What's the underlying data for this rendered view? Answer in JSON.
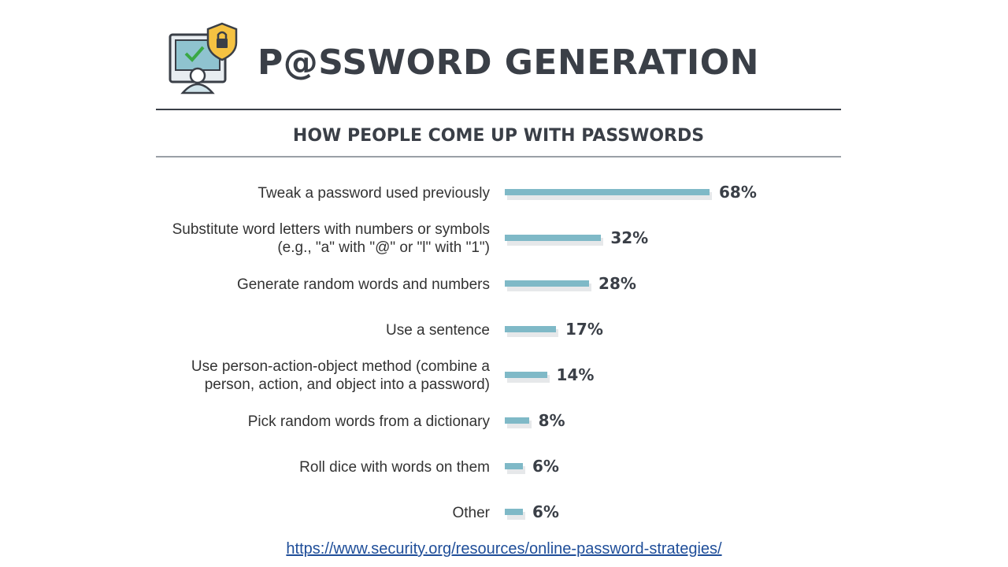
{
  "header": {
    "title": "P@SSWORD GENERATION",
    "subtitle": "HOW PEOPLE COME UP WITH PASSWORDS"
  },
  "colors": {
    "bar": "#7fb9c7",
    "text": "#3a3f47",
    "link": "#1f4e99"
  },
  "chart_data": {
    "type": "bar",
    "orientation": "horizontal",
    "title": "HOW PEOPLE COME UP WITH PASSWORDS",
    "categories": [
      [
        "Tweak a password used previously"
      ],
      [
        "Substitute word letters with numbers or symbols",
        "(e.g., \"a\" with \"@\" or \"l\" with \"1\")"
      ],
      [
        "Generate random words and numbers"
      ],
      [
        "Use a sentence"
      ],
      [
        "Use person-action-object method (combine a",
        "person, action, and object into a password)"
      ],
      [
        "Pick random words from a dictionary"
      ],
      [
        "Roll dice with words on them"
      ],
      [
        "Other"
      ]
    ],
    "values": [
      68,
      32,
      28,
      17,
      14,
      8,
      6,
      6
    ],
    "value_labels": [
      "68%",
      "32%",
      "28%",
      "17%",
      "14%",
      "8%",
      "6%",
      "6%"
    ],
    "xlim": [
      0,
      100
    ],
    "grid": false
  },
  "footer": {
    "source_link": "https://www.security.org/resources/online-password-strategies/"
  }
}
